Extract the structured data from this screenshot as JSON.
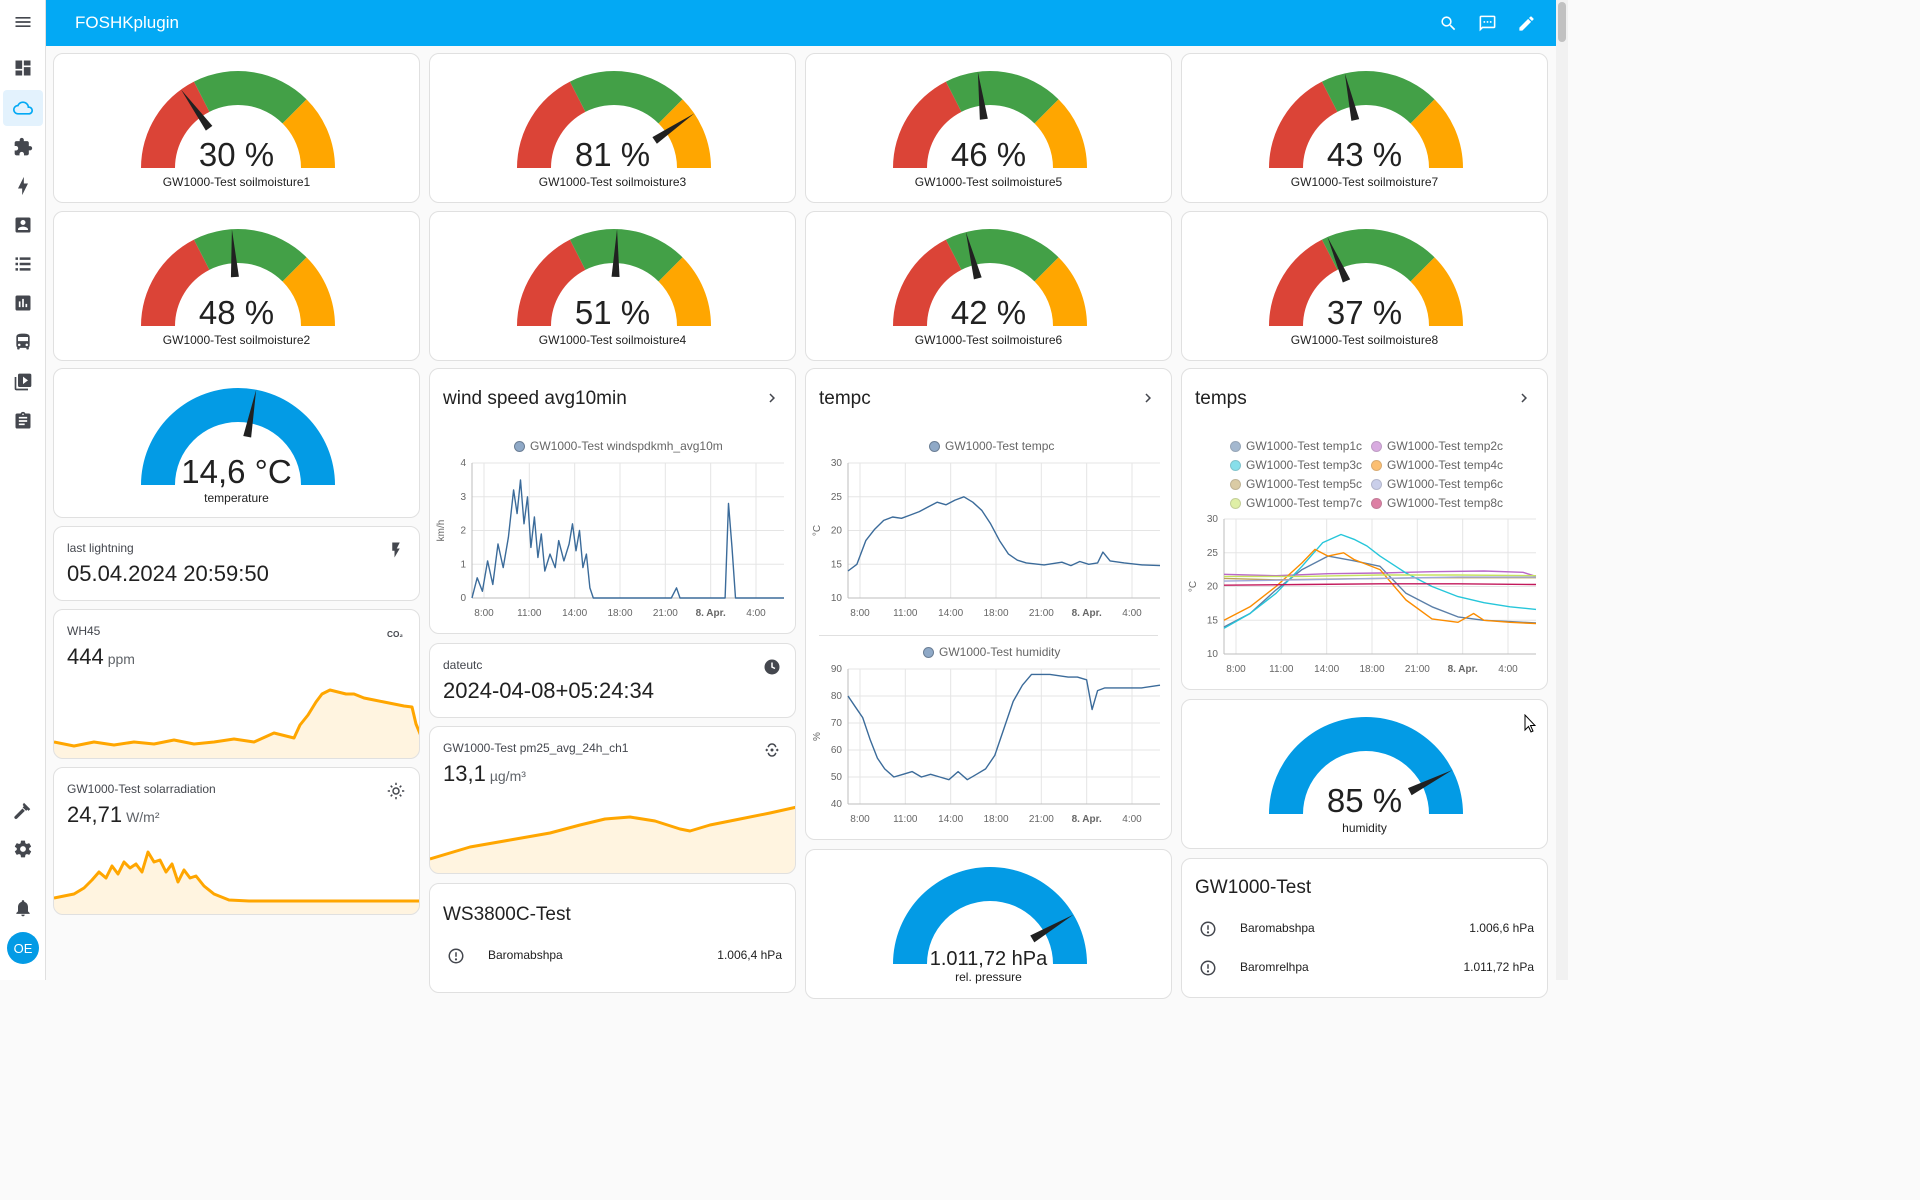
{
  "app": {
    "title": "FOSHKplugin",
    "avatar_initials": "OE",
    "accent_color": "#03a9f4"
  },
  "sidebar": {
    "items": [
      {
        "icon": "menu-icon"
      },
      {
        "icon": "dashboard-icon"
      },
      {
        "icon": "weather-cloud-icon",
        "active": true
      },
      {
        "icon": "puzzle-icon"
      },
      {
        "icon": "lightning-bolt-icon"
      },
      {
        "icon": "account-box-icon"
      },
      {
        "icon": "list-icon"
      },
      {
        "icon": "chart-box-icon"
      },
      {
        "icon": "bus-icon"
      },
      {
        "icon": "media-icon"
      },
      {
        "icon": "clipboard-icon"
      },
      {
        "icon": "hammer-icon"
      },
      {
        "icon": "settings-gear-icon"
      },
      {
        "icon": "bell-icon"
      }
    ]
  },
  "toolbar": {
    "icons": [
      "search-icon",
      "assist-chat-icon",
      "edit-pencil-icon"
    ]
  },
  "gauge_colors": {
    "red": "#db4437",
    "green": "#43a047",
    "orange": "#ffa600",
    "blue": "#039be5",
    "needle": "#212121"
  },
  "soil_gauges": [
    {
      "value": 30,
      "value_text": "30 %",
      "name": "GW1000-Test soilmoisture1"
    },
    {
      "value": 81,
      "value_text": "81 %",
      "name": "GW1000-Test soilmoisture3"
    },
    {
      "value": 46,
      "value_text": "46 %",
      "name": "GW1000-Test soilmoisture5"
    },
    {
      "value": 43,
      "value_text": "43 %",
      "name": "GW1000-Test soilmoisture7"
    },
    {
      "value": 48,
      "value_text": "48 %",
      "name": "GW1000-Test soilmoisture2"
    },
    {
      "value": 51,
      "value_text": "51 %",
      "name": "GW1000-Test soilmoisture4"
    },
    {
      "value": 42,
      "value_text": "42 %",
      "name": "GW1000-Test soilmoisture6"
    },
    {
      "value": 37,
      "value_text": "37 %",
      "name": "GW1000-Test soilmoisture8"
    }
  ],
  "temperature_gauge": {
    "fill_fraction": 0.56,
    "value_text": "14,6 °C",
    "name": "temperature"
  },
  "humidity_gauge": {
    "fill_fraction": 0.85,
    "value_text": "85 %",
    "name": "humidity"
  },
  "pressure_gauge": {
    "fill_fraction": 0.83,
    "value_text": "1.011,72 hPa",
    "name": "rel. pressure"
  },
  "last_lightning": {
    "name": "last lightning",
    "value": "05.04.2024 20:59:50",
    "icon": "lightning-flash-icon"
  },
  "wh45": {
    "name": "WH45",
    "value": "444",
    "unit": "ppm",
    "icon": "co2-icon"
  },
  "solar": {
    "name": "GW1000-Test solarradiation",
    "value": "24,71",
    "unit": "W/m²",
    "icon": "sun-icon"
  },
  "dateutc": {
    "name": "dateutc",
    "value": "2024-04-08+05:24:34",
    "icon": "clock-icon"
  },
  "pm25": {
    "name": "GW1000-Test pm25_avg_24h_ch1",
    "value": "13,1",
    "unit": "µg/m³",
    "icon": "air-filter-icon"
  },
  "wind_card": {
    "title": "wind speed avg10min"
  },
  "tempc_card": {
    "title": "tempc"
  },
  "temps_card": {
    "title": "temps"
  },
  "ws3800": {
    "title": "WS3800C-Test",
    "rows": [
      {
        "name": "Baromabshpa",
        "value": "1.006,4 hPa",
        "icon": "gauge-icon"
      }
    ]
  },
  "gw1000": {
    "title": "GW1000-Test",
    "rows": [
      {
        "name": "Baromabshpa",
        "value": "1.006,6 hPa",
        "icon": "gauge-icon"
      },
      {
        "name": "Baromrelhpa",
        "value": "1.011,72 hPa",
        "icon": "gauge-icon"
      }
    ]
  },
  "chart_data": [
    {
      "type": "line",
      "series": [
        {
          "name": "GW1000-Test windspdkmh_avg10m",
          "color": "#3b6b9a",
          "points": [
            [
              0,
              0
            ],
            [
              0.3,
              0.6
            ],
            [
              0.6,
              0.2
            ],
            [
              0.9,
              1.1
            ],
            [
              1.2,
              0.4
            ],
            [
              1.5,
              1.6
            ],
            [
              1.8,
              0.9
            ],
            [
              2.1,
              1.8
            ],
            [
              2.4,
              3.2
            ],
            [
              2.6,
              2.5
            ],
            [
              2.8,
              3.5
            ],
            [
              3.0,
              2.2
            ],
            [
              3.2,
              3.0
            ],
            [
              3.4,
              1.5
            ],
            [
              3.6,
              2.4
            ],
            [
              3.8,
              1.2
            ],
            [
              4.0,
              1.9
            ],
            [
              4.2,
              0.8
            ],
            [
              4.5,
              1.3
            ],
            [
              4.8,
              0.9
            ],
            [
              5.0,
              1.7
            ],
            [
              5.3,
              1.1
            ],
            [
              5.6,
              1.6
            ],
            [
              5.8,
              2.2
            ],
            [
              6.0,
              1.4
            ],
            [
              6.2,
              2.0
            ],
            [
              6.4,
              0.9
            ],
            [
              6.6,
              1.3
            ],
            [
              6.8,
              0.3
            ],
            [
              7.0,
              0
            ],
            [
              9.0,
              0
            ],
            [
              10.0,
              0
            ],
            [
              11.5,
              0
            ],
            [
              11.8,
              0.3
            ],
            [
              12.0,
              0
            ],
            [
              14.0,
              0
            ],
            [
              14.6,
              0
            ],
            [
              14.8,
              2.8
            ],
            [
              15.0,
              1.5
            ],
            [
              15.2,
              0
            ],
            [
              18.0,
              0
            ]
          ]
        }
      ],
      "x_ticks": [
        "8:00",
        "11:00",
        "14:00",
        "18:00",
        "21:00",
        "8. Apr.",
        "4:00"
      ],
      "xlabel": "",
      "ylabel": "km/h",
      "ylim": [
        0,
        4
      ],
      "y_ticks": [
        "0",
        "1",
        "2",
        "3",
        "4"
      ],
      "grid": true
    },
    {
      "type": "line",
      "series": [
        {
          "name": "GW1000-Test tempc",
          "color": "#3b6b9a",
          "points": [
            [
              0,
              14
            ],
            [
              0.5,
              15
            ],
            [
              1,
              18.5
            ],
            [
              1.5,
              20.2
            ],
            [
              2,
              21.5
            ],
            [
              2.5,
              22
            ],
            [
              3,
              21.8
            ],
            [
              3.5,
              22.3
            ],
            [
              4,
              22.8
            ],
            [
              4.5,
              23.5
            ],
            [
              5,
              24.2
            ],
            [
              5.5,
              23.8
            ],
            [
              6,
              24.5
            ],
            [
              6.5,
              25
            ],
            [
              7,
              24.2
            ],
            [
              7.5,
              23
            ],
            [
              8,
              21
            ],
            [
              8.5,
              18.5
            ],
            [
              9,
              16.5
            ],
            [
              9.5,
              15.6
            ],
            [
              10,
              15.2
            ],
            [
              11,
              14.9
            ],
            [
              12,
              15.3
            ],
            [
              12.5,
              14.8
            ],
            [
              13,
              15.4
            ],
            [
              13.5,
              15
            ],
            [
              14,
              15.2
            ],
            [
              14.3,
              16.8
            ],
            [
              14.7,
              15.5
            ],
            [
              15.5,
              15.2
            ],
            [
              16.5,
              14.9
            ],
            [
              17.5,
              14.8
            ]
          ]
        }
      ],
      "x_ticks": [
        "8:00",
        "11:00",
        "14:00",
        "18:00",
        "21:00",
        "8. Apr.",
        "4:00"
      ],
      "xlabel": "",
      "ylabel": "°C",
      "ylim": [
        10,
        30
      ],
      "y_ticks": [
        "10",
        "15",
        "20",
        "25",
        "30"
      ],
      "grid": true
    },
    {
      "type": "line",
      "series": [
        {
          "name": "GW1000-Test humidity",
          "color": "#3b6b9a",
          "points": [
            [
              0,
              80
            ],
            [
              0.4,
              76
            ],
            [
              0.8,
              72
            ],
            [
              1.2,
              64
            ],
            [
              1.6,
              57
            ],
            [
              2,
              53
            ],
            [
              2.5,
              50
            ],
            [
              3,
              51
            ],
            [
              3.5,
              52
            ],
            [
              4,
              50
            ],
            [
              4.5,
              51
            ],
            [
              5,
              50
            ],
            [
              5.5,
              49
            ],
            [
              6,
              52
            ],
            [
              6.5,
              49
            ],
            [
              7,
              51
            ],
            [
              7.5,
              53
            ],
            [
              8,
              58
            ],
            [
              8.5,
              68
            ],
            [
              9,
              78
            ],
            [
              9.5,
              84
            ],
            [
              10,
              88
            ],
            [
              11,
              88
            ],
            [
              12,
              87
            ],
            [
              12.5,
              87
            ],
            [
              13,
              86
            ],
            [
              13.3,
              75
            ],
            [
              13.6,
              82
            ],
            [
              14,
              83
            ],
            [
              15,
              83
            ],
            [
              16,
              83
            ],
            [
              17,
              84
            ]
          ]
        }
      ],
      "x_ticks": [
        "8:00",
        "11:00",
        "14:00",
        "18:00",
        "21:00",
        "8. Apr.",
        "4:00"
      ],
      "xlabel": "",
      "ylabel": "%",
      "ylim": [
        40,
        90
      ],
      "y_ticks": [
        "40",
        "50",
        "60",
        "70",
        "80",
        "90"
      ],
      "grid": true
    },
    {
      "type": "line",
      "series": [
        {
          "name": "GW1000-Test temp1c",
          "color": "#5b7fa8",
          "points": [
            [
              0,
              14
            ],
            [
              1,
              16
            ],
            [
              2,
              19.5
            ],
            [
              3,
              22.5
            ],
            [
              4,
              24.5
            ],
            [
              5,
              23.8
            ],
            [
              6,
              23
            ],
            [
              7,
              19
            ],
            [
              8,
              17
            ],
            [
              9,
              15.5
            ],
            [
              10,
              15
            ],
            [
              11,
              14.8
            ],
            [
              12,
              14.6
            ]
          ]
        },
        {
          "name": "GW1000-Test temp2c",
          "color": "#ba68c8",
          "points": [
            [
              0,
              21.8
            ],
            [
              2,
              21.6
            ],
            [
              4,
              21.9
            ],
            [
              6,
              22
            ],
            [
              8,
              22.2
            ],
            [
              10,
              22.3
            ],
            [
              11.5,
              22.1
            ],
            [
              12,
              21.5
            ]
          ]
        },
        {
          "name": "GW1000-Test temp3c",
          "color": "#26c6da",
          "points": [
            [
              0,
              13.8
            ],
            [
              1,
              16
            ],
            [
              2,
              19
            ],
            [
              3,
              23
            ],
            [
              3.8,
              26.5
            ],
            [
              4.5,
              27.7
            ],
            [
              5,
              27
            ],
            [
              5.5,
              26
            ],
            [
              6,
              24.5
            ],
            [
              7,
              22
            ],
            [
              8,
              20
            ],
            [
              9,
              18.5
            ],
            [
              10,
              17.6
            ],
            [
              11,
              17
            ],
            [
              12,
              16.6
            ]
          ]
        },
        {
          "name": "GW1000-Test temp4c",
          "color": "#fb8c00",
          "points": [
            [
              0,
              15
            ],
            [
              1,
              17
            ],
            [
              2,
              20
            ],
            [
              3,
              23.5
            ],
            [
              3.5,
              25.5
            ],
            [
              4,
              24.5
            ],
            [
              4.6,
              25
            ],
            [
              5,
              24
            ],
            [
              6,
              22.5
            ],
            [
              7,
              18
            ],
            [
              8,
              15.2
            ],
            [
              9,
              14.7
            ],
            [
              9.6,
              16
            ],
            [
              10,
              15
            ],
            [
              11,
              14.7
            ],
            [
              12,
              14.5
            ]
          ]
        },
        {
          "name": "GW1000-Test temp5c",
          "color": "#bda15a",
          "points": [
            [
              0,
              21.2
            ],
            [
              2,
              21
            ],
            [
              4,
              21.1
            ],
            [
              6,
              21.2
            ],
            [
              8,
              21.3
            ],
            [
              12,
              21.3
            ]
          ]
        },
        {
          "name": "GW1000-Test temp6c",
          "color": "#9fa8da",
          "points": [
            [
              0,
              20.8
            ],
            [
              3,
              21
            ],
            [
              6,
              21.2
            ],
            [
              9,
              21.4
            ],
            [
              12,
              21.4
            ]
          ]
        },
        {
          "name": "GW1000-Test temp7c",
          "color": "#c6e25f",
          "points": [
            [
              0,
              21.5
            ],
            [
              3,
              21.5
            ],
            [
              6,
              21.7
            ],
            [
              9,
              21.7
            ],
            [
              12,
              21.6
            ]
          ]
        },
        {
          "name": "GW1000-Test temp8c",
          "color": "#c2185b",
          "points": [
            [
              0,
              20.2
            ],
            [
              3,
              20.3
            ],
            [
              6,
              20.4
            ],
            [
              9,
              20.4
            ],
            [
              12,
              20.3
            ]
          ]
        }
      ],
      "x_ticks": [
        "8:00",
        "11:00",
        "14:00",
        "18:00",
        "21:00",
        "8. Apr.",
        "4:00"
      ],
      "xlabel": "",
      "ylabel": "°C",
      "ylim": [
        10,
        30
      ],
      "y_ticks": [
        "10",
        "15",
        "20",
        "25",
        "30"
      ],
      "grid": true
    }
  ]
}
